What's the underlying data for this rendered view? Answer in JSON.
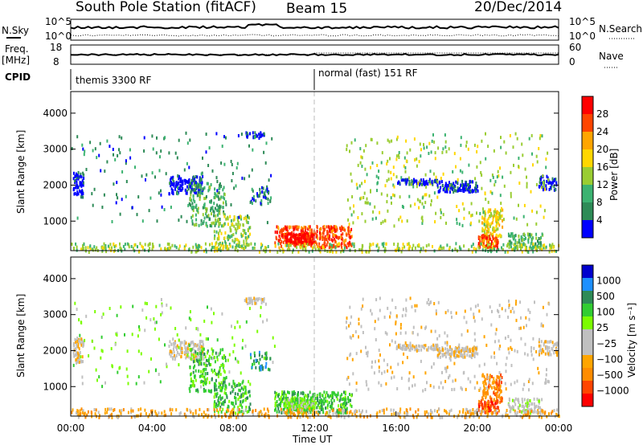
{
  "header": {
    "station": "South Pole Station (fitACF)",
    "beam": "Beam 15",
    "date": "20/Dec/2014"
  },
  "summary": {
    "nsky_label": "N.Sky",
    "nsearch_label": "N.Search",
    "freq_label_1": "Freq.",
    "freq_label_2": "[MHz]",
    "nave_label": "Nave",
    "cpid_label": "CPID",
    "noise_ticks_left": [
      "10^5",
      "10^0"
    ],
    "noise_ticks_right": [
      "10^5",
      "10^0"
    ],
    "freq_ticks": [
      "18",
      "8"
    ],
    "nave_ticks": [
      "60",
      "0"
    ],
    "cpid_segments": [
      {
        "label": "themis 3300 RF",
        "start_hour": 0,
        "end_hour": 12
      },
      {
        "label": "normal (fast) 151 RF",
        "start_hour": 12,
        "end_hour": 24
      }
    ]
  },
  "colors": {
    "power": [
      "#0000ff",
      "#2e8b57",
      "#3cb371",
      "#9acd32",
      "#ffd700",
      "#ffa500",
      "#ff4500",
      "#ff0000"
    ],
    "velocity": [
      "#ff0000",
      "#ff4500",
      "#ff8c00",
      "#ffa500",
      "#c0c0c0",
      "#c0c0c0",
      "#7cfc00",
      "#32cd32",
      "#2e8b57",
      "#1e90ff",
      "#0000cd"
    ]
  },
  "chart_data": [
    {
      "type": "heatmap",
      "name": "power",
      "ylabel": "Slant Range [km]",
      "xlabel": "",
      "xlim": [
        0,
        24
      ],
      "ylim": [
        180,
        4600
      ],
      "yticks": [
        "1000",
        "2000",
        "3000",
        "4000"
      ],
      "colorbar_label": "Power [dB]",
      "colorbar_ticks": [
        "4",
        "8",
        "12",
        "16",
        "20",
        "24",
        "28"
      ]
    },
    {
      "type": "heatmap",
      "name": "velocity",
      "ylabel": "Slant Range [km]",
      "xlabel": "Time UT",
      "xlim": [
        0,
        24
      ],
      "ylim": [
        180,
        4600
      ],
      "xticks": [
        "00:00",
        "04:00",
        "08:00",
        "12:00",
        "16:00",
        "20:00",
        "00:00"
      ],
      "yticks": [
        "1000",
        "2000",
        "3000",
        "4000"
      ],
      "colorbar_label": "Velocity [m s⁻¹]",
      "colorbar_ticks": [
        "1000",
        "500",
        "100",
        "25",
        "−25",
        "−100",
        "−500",
        "−1000"
      ]
    }
  ]
}
